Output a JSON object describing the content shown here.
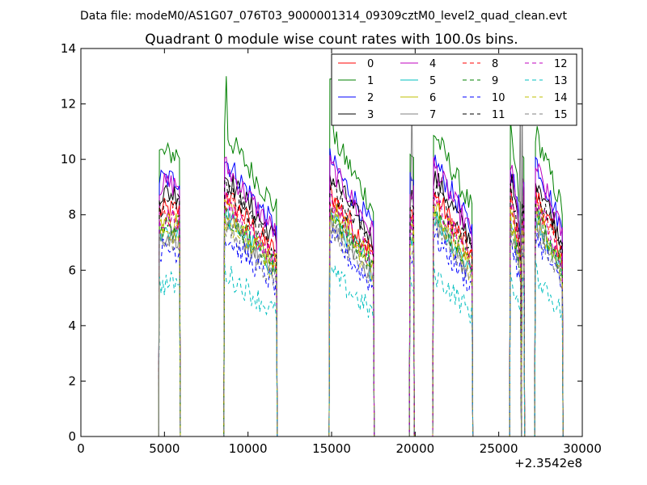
{
  "chart_data": {
    "type": "line",
    "suptitle": "Data file: modeM0/AS1G07_076T03_9000001314_09309cztM0_level2_quad_clean.evt",
    "title": "Quadrant 0 module wise count rates with 100.0s bins.",
    "xlabel": "",
    "ylabel": "",
    "x_offset_label": "+2.3542e8",
    "xlim": [
      0,
      30000
    ],
    "ylim": [
      0,
      14
    ],
    "x_ticks": [
      0,
      5000,
      10000,
      15000,
      20000,
      25000,
      30000
    ],
    "y_ticks": [
      0,
      2,
      4,
      6,
      8,
      10,
      12,
      14
    ],
    "legend": {
      "placement": "top-right",
      "columns": 4
    },
    "grid": false,
    "segments": [
      {
        "x_start": 4700,
        "x_end": 5900
      },
      {
        "x_start": 8600,
        "x_end": 11700
      },
      {
        "x_start": 14900,
        "x_end": 17500
      },
      {
        "x_start": 19700,
        "x_end": 19900
      },
      {
        "x_start": 21100,
        "x_end": 23400
      },
      {
        "x_start": 25700,
        "x_end": 26300
      },
      {
        "x_start": 26400,
        "x_end": 26500
      },
      {
        "x_start": 27200,
        "x_end": 28800
      }
    ],
    "series": [
      {
        "name": "0",
        "color": "#ff0000",
        "dash": "solid",
        "level": 8.0
      },
      {
        "name": "1",
        "color": "#008000",
        "dash": "solid",
        "level": 10.0
      },
      {
        "name": "2",
        "color": "#0000ff",
        "dash": "solid",
        "level": 9.1
      },
      {
        "name": "3",
        "color": "#000000",
        "dash": "solid",
        "level": 8.6
      },
      {
        "name": "4",
        "color": "#bf00bf",
        "dash": "solid",
        "level": 8.9
      },
      {
        "name": "5",
        "color": "#00bfbf",
        "dash": "solid",
        "level": 7.3
      },
      {
        "name": "6",
        "color": "#bfbf00",
        "dash": "solid",
        "level": 7.6
      },
      {
        "name": "7",
        "color": "#808080",
        "dash": "solid",
        "level": 7.1
      },
      {
        "name": "8",
        "color": "#ff0000",
        "dash": "dashed",
        "level": 7.8
      },
      {
        "name": "9",
        "color": "#008000",
        "dash": "dashed",
        "level": 7.4
      },
      {
        "name": "10",
        "color": "#0000ff",
        "dash": "dashed",
        "level": 6.6
      },
      {
        "name": "11",
        "color": "#000000",
        "dash": "dashed",
        "level": 8.2
      },
      {
        "name": "12",
        "color": "#bf00bf",
        "dash": "dashed",
        "level": 7.7
      },
      {
        "name": "13",
        "color": "#00bfbf",
        "dash": "dashed",
        "level": 5.4
      },
      {
        "name": "14",
        "color": "#bfbf00",
        "dash": "dashed",
        "level": 7.2
      },
      {
        "name": "15",
        "color": "#808080",
        "dash": "dashed",
        "level": 6.9
      }
    ],
    "spikes": [
      {
        "x": 8700,
        "series": "1",
        "value": 13.0
      },
      {
        "x": 14950,
        "series": "1",
        "value": 12.9
      },
      {
        "x": 19800,
        "series": "7",
        "value": 12.1
      },
      {
        "x": 26350,
        "series": "7",
        "value": 12.9
      }
    ]
  }
}
